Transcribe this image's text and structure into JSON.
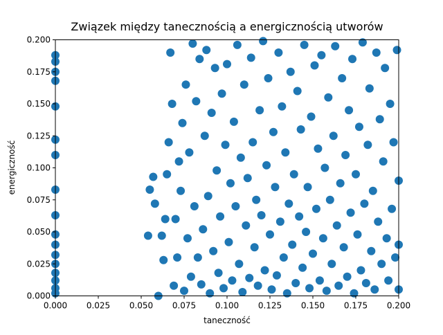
{
  "chart_data": {
    "type": "scatter",
    "title": "Związek między tanecznością a energicznością utworów",
    "xlabel": "taneczność",
    "ylabel": "energiczność",
    "color": "#1f77b4",
    "xlim": [
      0,
      0.2
    ],
    "ylim": [
      0,
      0.2
    ],
    "xticks": [
      {
        "value": 0,
        "label": "0.000"
      },
      {
        "value": 0.025,
        "label": "0.025"
      },
      {
        "value": 0.05,
        "label": "0.050"
      },
      {
        "value": 0.075,
        "label": "0.075"
      },
      {
        "value": 0.1,
        "label": "0.100"
      },
      {
        "value": 0.125,
        "label": "0.125"
      },
      {
        "value": 0.15,
        "label": "0.150"
      },
      {
        "value": 0.175,
        "label": "0.175"
      },
      {
        "value": 0.2,
        "label": "0.200"
      }
    ],
    "yticks": [
      {
        "value": 0,
        "label": "0.000"
      },
      {
        "value": 0.025,
        "label": "0.025"
      },
      {
        "value": 0.05,
        "label": "0.050"
      },
      {
        "value": 0.075,
        "label": "0.075"
      },
      {
        "value": 0.1,
        "label": "0.100"
      },
      {
        "value": 0.125,
        "label": "0.125"
      },
      {
        "value": 0.15,
        "label": "0.150"
      },
      {
        "value": 0.175,
        "label": "0.175"
      },
      {
        "value": 0.2,
        "label": "0.200"
      }
    ],
    "x": [
      0,
      0,
      0,
      0,
      0,
      0,
      0,
      0,
      0,
      0,
      0,
      0,
      0,
      0,
      0,
      0,
      0,
      0.055,
      0.057,
      0.058,
      0.054,
      0.06,
      0.062,
      0.063,
      0.064,
      0.065,
      0.066,
      0.067,
      0.068,
      0.069,
      0.07,
      0.071,
      0.072,
      0.073,
      0.074,
      0.075,
      0.076,
      0.077,
      0.078,
      0.079,
      0.08,
      0.081,
      0.082,
      0.083,
      0.084,
      0.085,
      0.086,
      0.087,
      0.088,
      0.089,
      0.09,
      0.091,
      0.092,
      0.093,
      0.094,
      0.095,
      0.096,
      0.097,
      0.098,
      0.099,
      0.1,
      0.101,
      0.102,
      0.103,
      0.104,
      0.105,
      0.106,
      0.107,
      0.108,
      0.109,
      0.11,
      0.111,
      0.112,
      0.113,
      0.114,
      0.115,
      0.116,
      0.117,
      0.118,
      0.119,
      0.12,
      0.121,
      0.122,
      0.123,
      0.124,
      0.125,
      0.126,
      0.127,
      0.128,
      0.129,
      0.13,
      0.131,
      0.132,
      0.133,
      0.134,
      0.135,
      0.136,
      0.137,
      0.138,
      0.139,
      0.14,
      0.141,
      0.142,
      0.143,
      0.144,
      0.145,
      0.146,
      0.147,
      0.148,
      0.149,
      0.15,
      0.151,
      0.152,
      0.153,
      0.154,
      0.155,
      0.156,
      0.157,
      0.158,
      0.159,
      0.16,
      0.161,
      0.162,
      0.163,
      0.164,
      0.165,
      0.166,
      0.167,
      0.168,
      0.169,
      0.17,
      0.171,
      0.172,
      0.173,
      0.174,
      0.175,
      0.176,
      0.177,
      0.178,
      0.179,
      0.18,
      0.181,
      0.182,
      0.183,
      0.184,
      0.185,
      0.186,
      0.187,
      0.188,
      0.189,
      0.19,
      0.191,
      0.192,
      0.193,
      0.194,
      0.195,
      0.196,
      0.197,
      0.198,
      0.199,
      0.2,
      0.2,
      0.2
    ],
    "y": [
      0.188,
      0.183,
      0.175,
      0.168,
      0.148,
      0.122,
      0.11,
      0.083,
      0.063,
      0.048,
      0.04,
      0.032,
      0.025,
      0.018,
      0.012,
      0.006,
      0.002,
      0.083,
      0.093,
      0.072,
      0.047,
      0.0,
      0.047,
      0.028,
      0.06,
      0.095,
      0.12,
      0.19,
      0.15,
      0.008,
      0.06,
      0.03,
      0.105,
      0.082,
      0.135,
      0.004,
      0.165,
      0.045,
      0.112,
      0.015,
      0.197,
      0.07,
      0.152,
      0.03,
      0.185,
      0.009,
      0.052,
      0.125,
      0.192,
      0.078,
      0.002,
      0.143,
      0.035,
      0.178,
      0.098,
      0.018,
      0.062,
      0.158,
      0.006,
      0.118,
      0.181,
      0.042,
      0.088,
      0.012,
      0.136,
      0.07,
      0.196,
      0.025,
      0.108,
      0.003,
      0.165,
      0.055,
      0.092,
      0.014,
      0.186,
      0.12,
      0.038,
      0.075,
      0.008,
      0.145,
      0.063,
      0.199,
      0.02,
      0.102,
      0.17,
      0.048,
      0.005,
      0.128,
      0.085,
      0.016,
      0.19,
      0.058,
      0.148,
      0.03,
      0.112,
      0.002,
      0.072,
      0.175,
      0.04,
      0.095,
      0.01,
      0.16,
      0.062,
      0.13,
      0.022,
      0.196,
      0.05,
      0.085,
      0.006,
      0.14,
      0.033,
      0.18,
      0.068,
      0.115,
      0.012,
      0.188,
      0.045,
      0.1,
      0.004,
      0.155,
      0.075,
      0.025,
      0.125,
      0.195,
      0.055,
      0.008,
      0.088,
      0.17,
      0.038,
      0.11,
      0.015,
      0.145,
      0.065,
      0.185,
      0.002,
      0.095,
      0.048,
      0.132,
      0.02,
      0.198,
      0.072,
      0.01,
      0.118,
      0.162,
      0.035,
      0.082,
      0.005,
      0.19,
      0.058,
      0.138,
      0.025,
      0.105,
      0.178,
      0.045,
      0.012,
      0.15,
      0.068,
      0.12,
      0.03,
      0.192,
      0.09,
      0.04,
      0.005
    ]
  }
}
